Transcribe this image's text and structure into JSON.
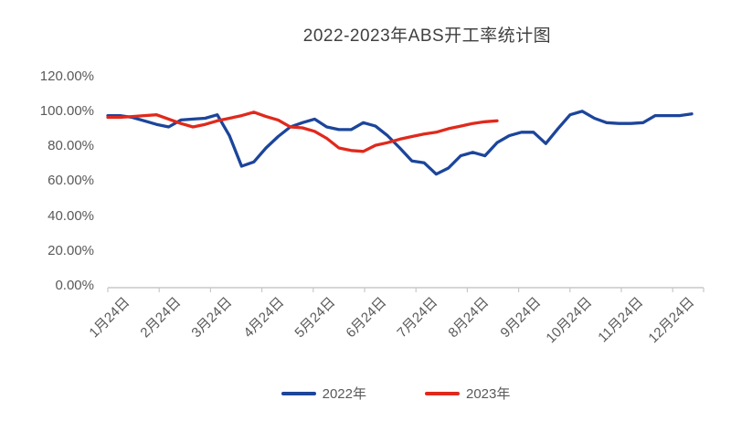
{
  "title": "2022-2023年ABS开工率统计图",
  "legend": [
    {
      "label": "2022年",
      "color": "#1c459b"
    },
    {
      "label": "2023年",
      "color": "#e0291c"
    }
  ],
  "chart_data": {
    "type": "line",
    "title": "2022-2023年ABS开工率统计图",
    "xlabel": "",
    "ylabel": "",
    "x_unit": "weekly points, labeled on the 24th of each month",
    "x_tick_labels": [
      "1月24日",
      "2月24日",
      "3月24日",
      "4月24日",
      "5月24日",
      "6月24日",
      "7月24日",
      "8月24日",
      "9月24日",
      "10月24日",
      "11月24日",
      "12月24日"
    ],
    "y_tick_labels": [
      "120.00%",
      "100.00%",
      "80.00%",
      "60.00%",
      "40.00%",
      "20.00%",
      "0.00%"
    ],
    "y_tick_values": [
      120,
      100,
      80,
      60,
      40,
      20,
      0
    ],
    "ylim": [
      0,
      120
    ],
    "grid": false,
    "legend_position": "bottom",
    "series": [
      {
        "name": "2022年",
        "color": "#1c459b",
        "values": [
          97.5,
          97.5,
          96.5,
          94.5,
          92.5,
          91,
          95,
          95.5,
          96,
          98,
          86,
          68.5,
          71,
          79,
          85.5,
          91,
          93.5,
          95.5,
          91,
          89.5,
          89.5,
          93.5,
          91.5,
          86,
          79,
          71.5,
          70.5,
          64,
          67.5,
          74.5,
          76.5,
          74.5,
          82,
          86,
          88,
          88,
          81.5,
          90,
          98,
          100,
          96,
          93.5,
          93,
          93,
          93.5,
          97.5,
          97.5,
          97.5,
          98.5
        ]
      },
      {
        "name": "2023年",
        "color": "#e0291c",
        "values": [
          96.5,
          96.5,
          97,
          97.5,
          98,
          95.5,
          93,
          91,
          92.5,
          94.5,
          96,
          97.5,
          99.5,
          97,
          95,
          91,
          90.5,
          88.5,
          84.5,
          79,
          77.5,
          77,
          80.5,
          82,
          84,
          85.5,
          87,
          88,
          90,
          91.5,
          93,
          94,
          94.5
        ]
      }
    ]
  }
}
